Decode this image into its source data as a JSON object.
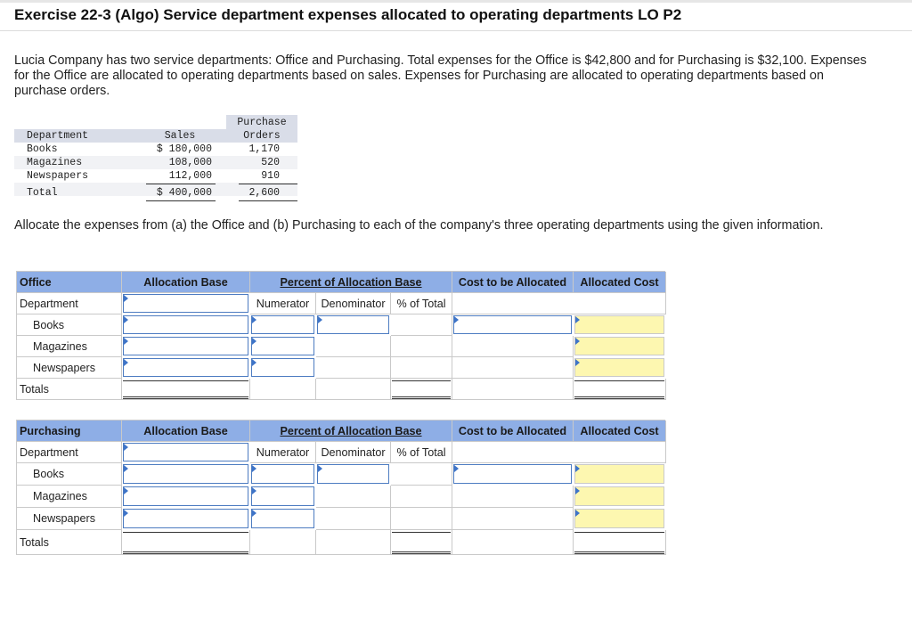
{
  "title": "Exercise 22-3 (Algo) Service department expenses allocated to operating departments LO P2",
  "intro": "Lucia Company has two service departments: Office and Purchasing. Total expenses for the Office is $42,800 and for Purchasing is $32,100. Expenses for the Office are allocated to operating departments based on sales. Expenses for Purchasing are allocated to operating departments based on purchase orders.",
  "data_table": {
    "headers": {
      "department": "Department",
      "sales": "Sales",
      "po_line1": "Purchase",
      "po_line2": "Orders"
    },
    "rows": [
      {
        "department": "Books",
        "sales": "$ 180,000",
        "po": "1,170"
      },
      {
        "department": "Magazines",
        "sales": "108,000",
        "po": "520"
      },
      {
        "department": "Newspapers",
        "sales": "112,000",
        "po": "910"
      }
    ],
    "total": {
      "department": "Total",
      "sales": "$ 400,000",
      "po": "2,600"
    }
  },
  "instruction": "Allocate the expenses from (a) the Office and (b) Purchasing to each of the company's three operating departments using the given information.",
  "office_section": {
    "heading": "Office",
    "col_allocation_base": "Allocation Base",
    "col_percent": "Percent of Allocation Base",
    "col_cost": "Cost to be Allocated",
    "col_allocated": "Allocated Cost",
    "sub_department": "Department",
    "sub_numerator": "Numerator",
    "sub_denominator": "Denominator",
    "sub_pct": "% of Total",
    "rows": [
      "Books",
      "Magazines",
      "Newspapers"
    ],
    "totals_label": "Totals"
  },
  "purchasing_section": {
    "heading": "Purchasing",
    "col_allocation_base": "Allocation Base",
    "col_percent": "Percent of Allocation Base",
    "col_cost": "Cost to be Allocated",
    "col_allocated": "Allocated Cost",
    "sub_department": "Department",
    "sub_numerator": "Numerator",
    "sub_denominator": "Denominator",
    "sub_pct": "% of Total",
    "rows": [
      "Books",
      "Magazines",
      "Newspapers"
    ],
    "totals_label": "Totals"
  },
  "colors": {
    "header_blue": "#8eaee6",
    "input_border": "#4d7cc1",
    "result_yellow": "#fdf7b0"
  }
}
